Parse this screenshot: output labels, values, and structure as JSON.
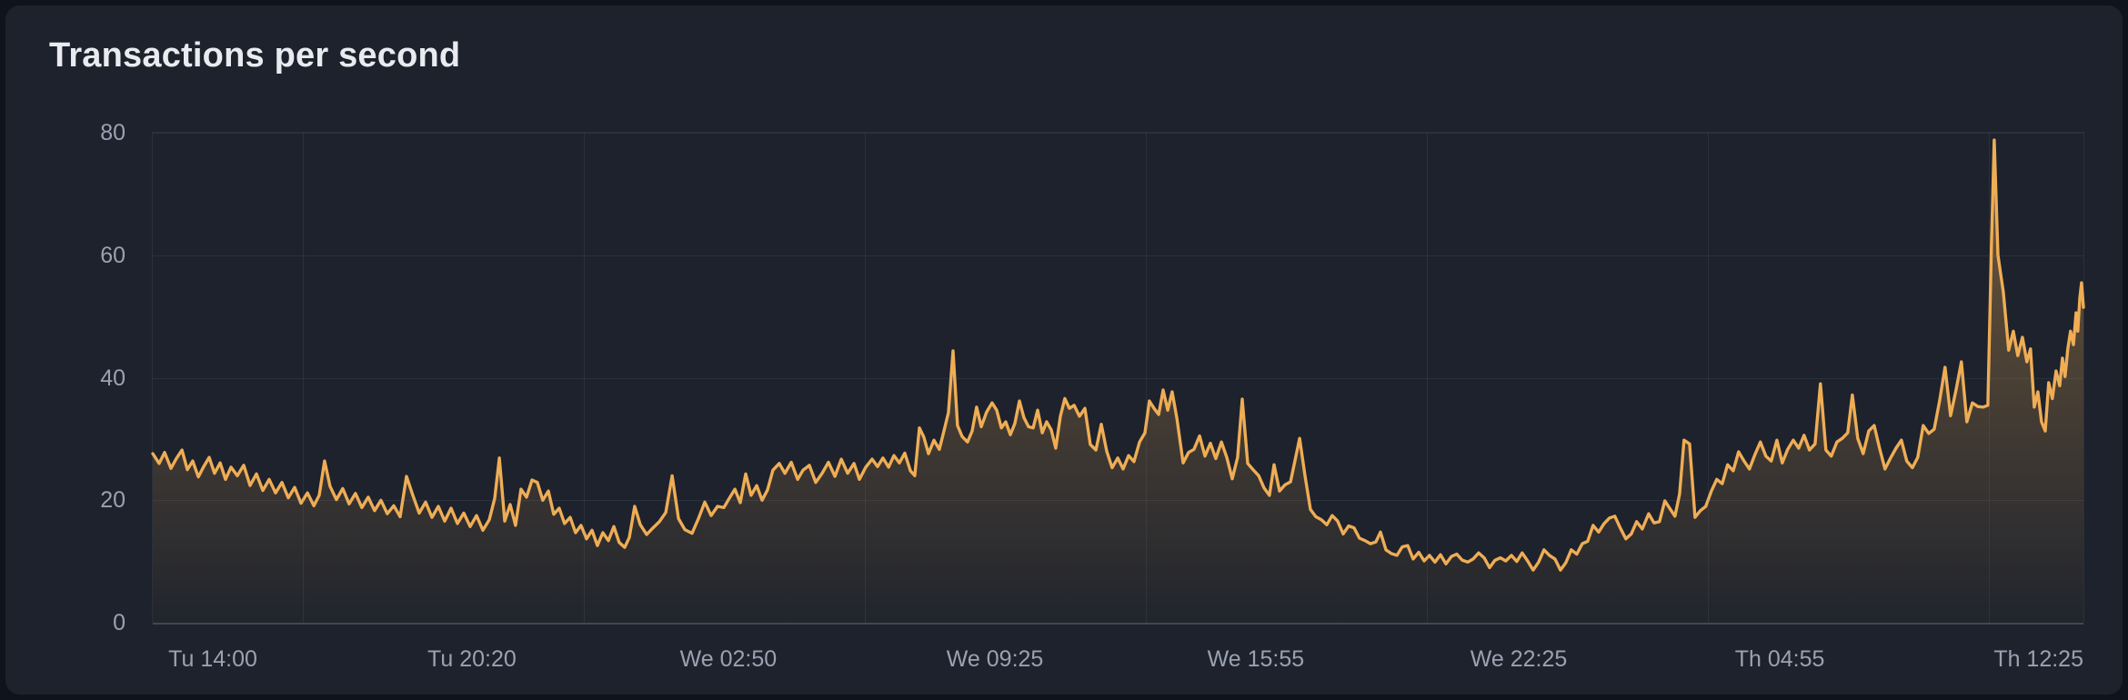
{
  "panel": {
    "title": "Transactions per second"
  },
  "colors": {
    "page_background": "#0f131b",
    "panel_background": "#1d222c",
    "line": "#efad55",
    "fill_top": "rgba(239,173,84,0.40)",
    "fill_bottom": "rgba(239,173,84,0.02)",
    "grid": "rgba(130,142,165,0.14)",
    "axis_label": "#9aa2b2",
    "title": "#e9ebf0"
  },
  "chart_data": {
    "type": "area",
    "title": "Transactions per second",
    "xlabel": "",
    "ylabel": "",
    "ylim": [
      0,
      80
    ],
    "y_ticks": [
      0,
      20,
      40,
      60,
      80
    ],
    "x_ticks": [
      "Tu 14:00",
      "Tu 20:20",
      "We 02:50",
      "We 09:25",
      "We 15:55",
      "We 22:25",
      "Th 04:55",
      "Th 12:25"
    ],
    "x_tick_pos": [
      0.0311,
      0.1653,
      0.2981,
      0.4362,
      0.5713,
      0.7075,
      0.8427,
      0.9774
    ],
    "vgrid_pos": [
      0.0777,
      0.2233,
      0.3688,
      0.5144,
      0.6599,
      0.8055,
      0.951
    ],
    "legend_position": "none",
    "grid": true,
    "points": [
      [
        0.0,
        27.6
      ],
      [
        0.0033,
        26.0
      ],
      [
        0.0061,
        27.8
      ],
      [
        0.0094,
        25.2
      ],
      [
        0.0122,
        26.8
      ],
      [
        0.0151,
        28.2
      ],
      [
        0.0179,
        25.0
      ],
      [
        0.0207,
        26.4
      ],
      [
        0.0236,
        23.8
      ],
      [
        0.0264,
        25.5
      ],
      [
        0.0292,
        27.0
      ],
      [
        0.032,
        24.4
      ],
      [
        0.0349,
        26.1
      ],
      [
        0.0377,
        23.4
      ],
      [
        0.0405,
        25.4
      ],
      [
        0.0438,
        24.0
      ],
      [
        0.0471,
        25.7
      ],
      [
        0.0504,
        22.4
      ],
      [
        0.0537,
        24.3
      ],
      [
        0.057,
        21.6
      ],
      [
        0.0603,
        23.4
      ],
      [
        0.0636,
        21.2
      ],
      [
        0.0669,
        22.9
      ],
      [
        0.0702,
        20.4
      ],
      [
        0.0735,
        22.1
      ],
      [
        0.0768,
        19.5
      ],
      [
        0.0801,
        21.2
      ],
      [
        0.0834,
        19.1
      ],
      [
        0.0862,
        20.8
      ],
      [
        0.089,
        26.4
      ],
      [
        0.0918,
        22.3
      ],
      [
        0.0951,
        20.1
      ],
      [
        0.0984,
        21.9
      ],
      [
        0.1017,
        19.4
      ],
      [
        0.105,
        21.1
      ],
      [
        0.1083,
        18.8
      ],
      [
        0.1116,
        20.5
      ],
      [
        0.1149,
        18.3
      ],
      [
        0.1182,
        20.0
      ],
      [
        0.1215,
        17.8
      ],
      [
        0.1248,
        19.1
      ],
      [
        0.1281,
        17.3
      ],
      [
        0.1314,
        23.9
      ],
      [
        0.1347,
        20.8
      ],
      [
        0.138,
        17.9
      ],
      [
        0.1413,
        19.7
      ],
      [
        0.1446,
        17.2
      ],
      [
        0.1479,
        19.0
      ],
      [
        0.1512,
        16.6
      ],
      [
        0.1545,
        18.7
      ],
      [
        0.1578,
        16.2
      ],
      [
        0.1611,
        17.9
      ],
      [
        0.1644,
        15.7
      ],
      [
        0.1677,
        17.5
      ],
      [
        0.171,
        15.1
      ],
      [
        0.1743,
        16.8
      ],
      [
        0.1771,
        20.3
      ],
      [
        0.1795,
        26.9
      ],
      [
        0.1823,
        16.6
      ],
      [
        0.1851,
        19.3
      ],
      [
        0.1879,
        15.9
      ],
      [
        0.1907,
        21.8
      ],
      [
        0.1936,
        20.5
      ],
      [
        0.1964,
        23.3
      ],
      [
        0.1992,
        22.9
      ],
      [
        0.202,
        20.0
      ],
      [
        0.2049,
        21.5
      ],
      [
        0.2077,
        17.7
      ],
      [
        0.2105,
        18.7
      ],
      [
        0.2133,
        16.2
      ],
      [
        0.2162,
        17.2
      ],
      [
        0.219,
        14.7
      ],
      [
        0.2218,
        15.9
      ],
      [
        0.2247,
        13.7
      ],
      [
        0.2275,
        15.1
      ],
      [
        0.2303,
        12.6
      ],
      [
        0.2331,
        14.7
      ],
      [
        0.236,
        13.4
      ],
      [
        0.2388,
        15.7
      ],
      [
        0.2416,
        13.1
      ],
      [
        0.2444,
        12.3
      ],
      [
        0.2468,
        13.9
      ],
      [
        0.2496,
        19.0
      ],
      [
        0.2525,
        16.0
      ],
      [
        0.2558,
        14.4
      ],
      [
        0.2591,
        15.5
      ],
      [
        0.2624,
        16.5
      ],
      [
        0.2657,
        18.0
      ],
      [
        0.269,
        24.0
      ],
      [
        0.2723,
        17.0
      ],
      [
        0.2756,
        15.2
      ],
      [
        0.2793,
        14.6
      ],
      [
        0.2826,
        17.0
      ],
      [
        0.2859,
        19.7
      ],
      [
        0.2892,
        17.5
      ],
      [
        0.2925,
        19.0
      ],
      [
        0.2958,
        18.8
      ],
      [
        0.2986,
        20.3
      ],
      [
        0.3015,
        21.8
      ],
      [
        0.3043,
        19.6
      ],
      [
        0.3071,
        24.3
      ],
      [
        0.3099,
        20.8
      ],
      [
        0.3128,
        22.4
      ],
      [
        0.3156,
        20.0
      ],
      [
        0.3184,
        21.7
      ],
      [
        0.3212,
        24.9
      ],
      [
        0.3245,
        26.0
      ],
      [
        0.3274,
        24.4
      ],
      [
        0.3307,
        26.2
      ],
      [
        0.334,
        23.4
      ],
      [
        0.3368,
        24.9
      ],
      [
        0.3401,
        25.7
      ],
      [
        0.3434,
        22.9
      ],
      [
        0.3467,
        24.4
      ],
      [
        0.35,
        26.2
      ],
      [
        0.3533,
        23.9
      ],
      [
        0.3566,
        26.7
      ],
      [
        0.3599,
        24.4
      ],
      [
        0.3632,
        26.0
      ],
      [
        0.366,
        23.4
      ],
      [
        0.3693,
        25.4
      ],
      [
        0.3726,
        26.7
      ],
      [
        0.3754,
        25.5
      ],
      [
        0.3782,
        26.9
      ],
      [
        0.3811,
        25.4
      ],
      [
        0.3839,
        27.3
      ],
      [
        0.3867,
        26.1
      ],
      [
        0.3895,
        27.7
      ],
      [
        0.3924,
        24.8
      ],
      [
        0.3947,
        24.0
      ],
      [
        0.3971,
        31.8
      ],
      [
        0.3994,
        30.3
      ],
      [
        0.4018,
        27.6
      ],
      [
        0.4046,
        29.8
      ],
      [
        0.4074,
        28.3
      ],
      [
        0.4098,
        31.3
      ],
      [
        0.4121,
        34.3
      ],
      [
        0.4145,
        44.4
      ],
      [
        0.4168,
        32.2
      ],
      [
        0.4192,
        30.4
      ],
      [
        0.422,
        29.5
      ],
      [
        0.4244,
        31.3
      ],
      [
        0.4267,
        35.2
      ],
      [
        0.4291,
        32.0
      ],
      [
        0.4319,
        34.4
      ],
      [
        0.4347,
        35.9
      ],
      [
        0.4371,
        34.7
      ],
      [
        0.4395,
        31.8
      ],
      [
        0.4418,
        32.8
      ],
      [
        0.4442,
        30.7
      ],
      [
        0.4465,
        32.5
      ],
      [
        0.4489,
        36.2
      ],
      [
        0.4512,
        33.5
      ],
      [
        0.4536,
        32.0
      ],
      [
        0.456,
        31.8
      ],
      [
        0.4583,
        34.7
      ],
      [
        0.4607,
        31.0
      ],
      [
        0.463,
        32.8
      ],
      [
        0.4654,
        31.5
      ],
      [
        0.4677,
        28.5
      ],
      [
        0.4701,
        33.7
      ],
      [
        0.4724,
        36.6
      ],
      [
        0.4748,
        35.0
      ],
      [
        0.4772,
        35.5
      ],
      [
        0.48,
        33.7
      ],
      [
        0.4828,
        35.0
      ],
      [
        0.4856,
        29.1
      ],
      [
        0.4885,
        28.2
      ],
      [
        0.4913,
        32.4
      ],
      [
        0.4941,
        28.0
      ],
      [
        0.4969,
        25.3
      ],
      [
        0.4998,
        26.9
      ],
      [
        0.5026,
        25.1
      ],
      [
        0.5054,
        27.3
      ],
      [
        0.5082,
        26.3
      ],
      [
        0.5111,
        29.5
      ],
      [
        0.5139,
        31.0
      ],
      [
        0.5162,
        36.2
      ],
      [
        0.5186,
        35.0
      ],
      [
        0.521,
        34.0
      ],
      [
        0.5233,
        38.0
      ],
      [
        0.5257,
        34.7
      ],
      [
        0.528,
        37.7
      ],
      [
        0.5304,
        33.5
      ],
      [
        0.5337,
        26.1
      ],
      [
        0.5365,
        27.8
      ],
      [
        0.5393,
        28.3
      ],
      [
        0.5422,
        30.5
      ],
      [
        0.545,
        27.2
      ],
      [
        0.5478,
        29.3
      ],
      [
        0.5506,
        26.8
      ],
      [
        0.5535,
        29.5
      ],
      [
        0.5563,
        27.0
      ],
      [
        0.5591,
        23.5
      ],
      [
        0.5619,
        27.0
      ],
      [
        0.5643,
        36.5
      ],
      [
        0.5671,
        26.0
      ],
      [
        0.5699,
        25.0
      ],
      [
        0.5728,
        24.0
      ],
      [
        0.5756,
        22.0
      ],
      [
        0.5784,
        20.8
      ],
      [
        0.5808,
        25.8
      ],
      [
        0.5836,
        21.5
      ],
      [
        0.5864,
        22.5
      ],
      [
        0.5893,
        23.0
      ],
      [
        0.594,
        30.1
      ],
      [
        0.5968,
        24.0
      ],
      [
        0.5996,
        18.5
      ],
      [
        0.6024,
        17.3
      ],
      [
        0.6053,
        16.8
      ],
      [
        0.6081,
        16.0
      ],
      [
        0.6109,
        17.5
      ],
      [
        0.6137,
        16.6
      ],
      [
        0.6166,
        14.5
      ],
      [
        0.6194,
        15.8
      ],
      [
        0.6222,
        15.5
      ],
      [
        0.625,
        13.8
      ],
      [
        0.6279,
        13.4
      ],
      [
        0.6307,
        12.9
      ],
      [
        0.6335,
        13.2
      ],
      [
        0.6359,
        14.8
      ],
      [
        0.6387,
        11.9
      ],
      [
        0.6415,
        11.3
      ],
      [
        0.6444,
        11.0
      ],
      [
        0.6472,
        12.4
      ],
      [
        0.65,
        12.6
      ],
      [
        0.6528,
        10.4
      ],
      [
        0.6557,
        11.5
      ],
      [
        0.6585,
        10.1
      ],
      [
        0.6613,
        11.0
      ],
      [
        0.6641,
        9.9
      ],
      [
        0.667,
        11.1
      ],
      [
        0.6698,
        9.6
      ],
      [
        0.6726,
        10.8
      ],
      [
        0.6754,
        11.2
      ],
      [
        0.6783,
        10.2
      ],
      [
        0.6811,
        9.9
      ],
      [
        0.6839,
        10.4
      ],
      [
        0.6867,
        11.4
      ],
      [
        0.6896,
        10.6
      ],
      [
        0.6924,
        9.0
      ],
      [
        0.6952,
        10.2
      ],
      [
        0.698,
        10.6
      ],
      [
        0.7008,
        10.1
      ],
      [
        0.7037,
        11.0
      ],
      [
        0.7065,
        10.0
      ],
      [
        0.7093,
        11.4
      ],
      [
        0.7121,
        10.1
      ],
      [
        0.715,
        8.6
      ],
      [
        0.7178,
        9.9
      ],
      [
        0.7206,
        11.9
      ],
      [
        0.7234,
        11.0
      ],
      [
        0.7263,
        10.4
      ],
      [
        0.7291,
        8.6
      ],
      [
        0.7319,
        9.8
      ],
      [
        0.7347,
        11.9
      ],
      [
        0.7376,
        11.2
      ],
      [
        0.7404,
        12.9
      ],
      [
        0.7432,
        13.3
      ],
      [
        0.746,
        15.9
      ],
      [
        0.7489,
        14.8
      ],
      [
        0.7517,
        16.2
      ],
      [
        0.7545,
        17.1
      ],
      [
        0.7573,
        17.4
      ],
      [
        0.7602,
        15.4
      ],
      [
        0.763,
        13.7
      ],
      [
        0.7658,
        14.5
      ],
      [
        0.7686,
        16.5
      ],
      [
        0.7715,
        15.3
      ],
      [
        0.7748,
        17.8
      ],
      [
        0.7776,
        16.3
      ],
      [
        0.7804,
        16.5
      ],
      [
        0.7832,
        19.9
      ],
      [
        0.7861,
        18.5
      ],
      [
        0.7884,
        17.4
      ],
      [
        0.7908,
        21.0
      ],
      [
        0.7931,
        29.8
      ],
      [
        0.796,
        29.2
      ],
      [
        0.7988,
        17.2
      ],
      [
        0.8016,
        18.3
      ],
      [
        0.8044,
        19.0
      ],
      [
        0.8073,
        21.5
      ],
      [
        0.8101,
        23.4
      ],
      [
        0.8129,
        22.7
      ],
      [
        0.8157,
        25.8
      ],
      [
        0.8186,
        24.8
      ],
      [
        0.8214,
        27.9
      ],
      [
        0.8242,
        26.4
      ],
      [
        0.827,
        25.1
      ],
      [
        0.8299,
        27.5
      ],
      [
        0.8327,
        29.5
      ],
      [
        0.8355,
        27.2
      ],
      [
        0.8383,
        26.4
      ],
      [
        0.8412,
        29.8
      ],
      [
        0.844,
        26.1
      ],
      [
        0.8468,
        28.3
      ],
      [
        0.8497,
        29.8
      ],
      [
        0.8525,
        28.5
      ],
      [
        0.8553,
        30.6
      ],
      [
        0.8581,
        28.2
      ],
      [
        0.861,
        29.2
      ],
      [
        0.8638,
        39.0
      ],
      [
        0.8666,
        28.2
      ],
      [
        0.8694,
        27.2
      ],
      [
        0.8723,
        29.5
      ],
      [
        0.8751,
        30.1
      ],
      [
        0.8779,
        31.0
      ],
      [
        0.8803,
        37.2
      ],
      [
        0.8831,
        30.1
      ],
      [
        0.8859,
        27.6
      ],
      [
        0.8888,
        31.3
      ],
      [
        0.8916,
        32.2
      ],
      [
        0.8944,
        28.5
      ],
      [
        0.8972,
        25.1
      ],
      [
        0.9001,
        26.9
      ],
      [
        0.9029,
        28.5
      ],
      [
        0.9057,
        29.8
      ],
      [
        0.9085,
        26.4
      ],
      [
        0.9114,
        25.3
      ],
      [
        0.9142,
        27.0
      ],
      [
        0.917,
        32.2
      ],
      [
        0.9199,
        30.9
      ],
      [
        0.9227,
        31.6
      ],
      [
        0.9255,
        36.2
      ],
      [
        0.9283,
        41.7
      ],
      [
        0.9312,
        33.8
      ],
      [
        0.934,
        38.0
      ],
      [
        0.9368,
        42.6
      ],
      [
        0.9396,
        32.8
      ],
      [
        0.9425,
        35.9
      ],
      [
        0.9453,
        35.3
      ],
      [
        0.9481,
        35.2
      ],
      [
        0.9505,
        35.5
      ],
      [
        0.9524,
        62.0
      ],
      [
        0.9538,
        78.8
      ],
      [
        0.9557,
        60.0
      ],
      [
        0.9585,
        54.0
      ],
      [
        0.9613,
        44.5
      ],
      [
        0.9637,
        47.6
      ],
      [
        0.966,
        43.6
      ],
      [
        0.9684,
        46.6
      ],
      [
        0.9707,
        42.6
      ],
      [
        0.9726,
        44.7
      ],
      [
        0.9745,
        35.2
      ],
      [
        0.9764,
        37.7
      ],
      [
        0.9783,
        32.8
      ],
      [
        0.9802,
        31.3
      ],
      [
        0.982,
        39.2
      ],
      [
        0.9839,
        36.6
      ],
      [
        0.9858,
        41.1
      ],
      [
        0.9877,
        38.7
      ],
      [
        0.9891,
        43.2
      ],
      [
        0.9905,
        40.2
      ],
      [
        0.9919,
        44.7
      ],
      [
        0.9933,
        47.6
      ],
      [
        0.9948,
        45.4
      ],
      [
        0.9962,
        50.6
      ],
      [
        0.9971,
        47.6
      ],
      [
        0.9981,
        53.0
      ],
      [
        0.999,
        55.5
      ],
      [
        1.0,
        51.5
      ]
    ]
  }
}
